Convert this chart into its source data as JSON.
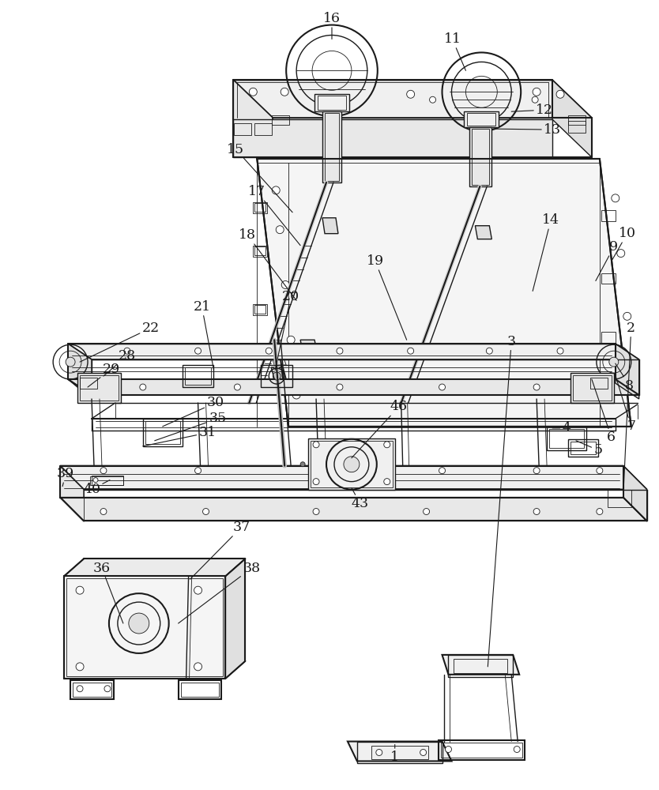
{
  "background_color": "#ffffff",
  "line_color": "#1a1a1a",
  "label_color": "#1a1a1a",
  "lw_main": 1.0,
  "lw_thin": 0.6,
  "lw_thick": 1.5
}
